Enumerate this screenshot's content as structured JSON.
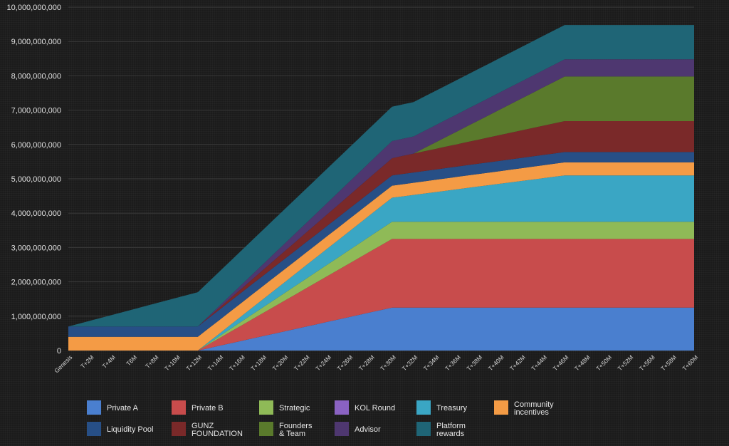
{
  "chart_data": {
    "type": "area",
    "stacked": true,
    "title": "",
    "xlabel": "",
    "ylabel": "",
    "ylim": [
      0,
      10000000000
    ],
    "y_ticks": [
      0,
      1000000000,
      2000000000,
      3000000000,
      4000000000,
      5000000000,
      6000000000,
      7000000000,
      8000000000,
      9000000000,
      10000000000
    ],
    "y_tick_labels": [
      "0",
      "1,000,000,000",
      "2,000,000,000",
      "3,000,000,000",
      "4,000,000,000",
      "5,000,000,000",
      "6,000,000,000",
      "7,000,000,000",
      "8,000,000,000",
      "9,000,000,000",
      "10,000,000,000"
    ],
    "grid": true,
    "legend_position": "bottom",
    "categories": [
      "Genesis",
      "T+2M",
      "T+4M",
      "T6M",
      "T+8M",
      "T+10M",
      "T+12M",
      "T+14M",
      "T+16M",
      "T+18M",
      "T+20M",
      "T+22M",
      "T+24M",
      "T+26M",
      "T+28M",
      "T+30M",
      "T+32M",
      "T+34M",
      "T+36M",
      "T+38M",
      "T+40M",
      "T+42M",
      "T+44M",
      "T+46M",
      "T+48M",
      "T+50M",
      "T+52M",
      "T+56M",
      "T+58M",
      "T+60M"
    ],
    "x_index": [
      0,
      2,
      4,
      6,
      8,
      10,
      12,
      14,
      16,
      18,
      20,
      22,
      24,
      26,
      28,
      30,
      32,
      34,
      36,
      38,
      40,
      42,
      44,
      46,
      48,
      50,
      52,
      54,
      56,
      58
    ],
    "series": [
      {
        "name": "Private A",
        "color": "#4a7fcf",
        "values": [
          [
            0,
            0
          ],
          [
            12,
            0
          ],
          [
            30,
            1250000000
          ],
          [
            46,
            1250000000
          ],
          [
            58,
            1250000000
          ]
        ]
      },
      {
        "name": "Private B",
        "color": "#c84c4c",
        "values": [
          [
            0,
            0
          ],
          [
            12,
            0
          ],
          [
            30,
            2000000000
          ],
          [
            46,
            2000000000
          ],
          [
            58,
            2000000000
          ]
        ]
      },
      {
        "name": "Strategic",
        "color": "#8fba57",
        "values": [
          [
            0,
            0
          ],
          [
            12,
            0
          ],
          [
            30,
            500000000
          ],
          [
            46,
            500000000
          ],
          [
            58,
            500000000
          ]
        ]
      },
      {
        "name": "KOL Round",
        "color": "#8a62c2",
        "values": [
          [
            0,
            0
          ],
          [
            12,
            0
          ],
          [
            30,
            0
          ],
          [
            46,
            0
          ],
          [
            58,
            0
          ]
        ]
      },
      {
        "name": "Treasury",
        "color": "#3aa6c4",
        "values": [
          [
            0,
            0
          ],
          [
            12,
            0
          ],
          [
            30,
            700000000
          ],
          [
            46,
            1350000000
          ],
          [
            58,
            1350000000
          ]
        ]
      },
      {
        "name": "Community incentives",
        "color": "#f49b45",
        "values": [
          [
            0,
            400000000
          ],
          [
            12,
            400000000
          ],
          [
            30,
            350000000
          ],
          [
            46,
            380000000
          ],
          [
            58,
            380000000
          ]
        ]
      },
      {
        "name": "Liquidity Pool",
        "color": "#274f86",
        "values": [
          [
            0,
            300000000
          ],
          [
            12,
            300000000
          ],
          [
            30,
            300000000
          ],
          [
            46,
            300000000
          ],
          [
            58,
            300000000
          ]
        ]
      },
      {
        "name": "GUNZ FOUNDATION",
        "color": "#7a2929",
        "values": [
          [
            0,
            0
          ],
          [
            12,
            0
          ],
          [
            30,
            500000000
          ],
          [
            46,
            900000000
          ],
          [
            58,
            900000000
          ]
        ]
      },
      {
        "name": "Founders & Team",
        "color": "#5a7a2c",
        "values": [
          [
            0,
            0
          ],
          [
            12,
            0
          ],
          [
            32,
            0
          ],
          [
            46,
            1300000000
          ],
          [
            58,
            1300000000
          ]
        ]
      },
      {
        "name": "Advisor",
        "color": "#4e3770",
        "values": [
          [
            0,
            0
          ],
          [
            12,
            0
          ],
          [
            30,
            500000000
          ],
          [
            46,
            500000000
          ],
          [
            58,
            500000000
          ]
        ]
      },
      {
        "name": "Platform rewards",
        "color": "#1f6576",
        "values": [
          [
            0,
            0
          ],
          [
            12,
            1000000000
          ],
          [
            30,
            1000000000
          ],
          [
            46,
            1000000000
          ],
          [
            58,
            1000000000
          ]
        ]
      }
    ]
  },
  "legend": {
    "rows": [
      [
        {
          "label": "Private A",
          "color": "#4a7fcf"
        },
        {
          "label": "Private B",
          "color": "#c84c4c"
        },
        {
          "label": "Strategic",
          "color": "#8fba57"
        },
        {
          "label": "KOL Round",
          "color": "#8a62c2"
        },
        {
          "label": "Treasury",
          "color": "#3aa6c4"
        },
        {
          "label": "Community incentives",
          "color": "#f49b45",
          "lines": [
            "Community",
            "incentives"
          ]
        }
      ],
      [
        {
          "label": "Liquidity Pool",
          "color": "#274f86"
        },
        {
          "label": "GUNZ FOUNDATION",
          "color": "#7a2929",
          "lines": [
            "GUNZ",
            "FOUNDATION"
          ]
        },
        {
          "label": "Founders & Team",
          "color": "#5a7a2c",
          "lines": [
            "Founders",
            "& Team"
          ]
        },
        {
          "label": "Advisor",
          "color": "#4e3770"
        },
        {
          "label": "Platform rewards",
          "color": "#1f6576",
          "lines": [
            "Platform",
            "rewards"
          ]
        }
      ]
    ]
  },
  "colors": {
    "background": "#1b1b1b",
    "grid": "#3a3a3a",
    "text": "#e0e0e0"
  }
}
